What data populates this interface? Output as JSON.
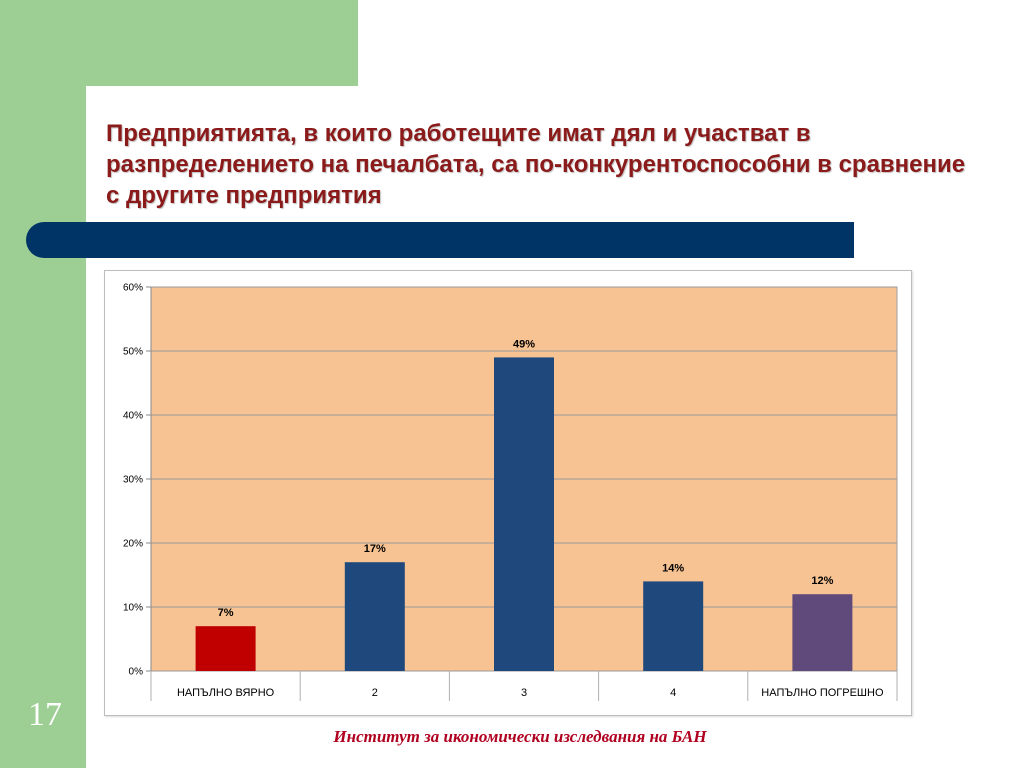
{
  "slide": {
    "number": "17",
    "title": "Предприятията, в които работещите имат дял и участват в разпределението на печалбата, са по-конкурентоспособни в сравнение с другите предприятия",
    "footer": "Институт за икономически изследвания на БАН"
  },
  "colors": {
    "green": "#9dcf94",
    "title_bar": "#003366",
    "title_text": "#8b1a1a",
    "plot_background": "#f7c393",
    "footer_text": "#b00020"
  },
  "chart_data": {
    "type": "bar",
    "categories": [
      "НАПЪЛНО ВЯРНО",
      "2",
      "3",
      "4",
      "НАПЪЛНО ПОГРЕШНО"
    ],
    "values": [
      7,
      17,
      49,
      14,
      12
    ],
    "data_labels": [
      "7%",
      "17%",
      "49%",
      "14%",
      "12%"
    ],
    "bar_colors": [
      "#c00000",
      "#1f497d",
      "#1f497d",
      "#1f497d",
      "#604a7b"
    ],
    "ylim": [
      0,
      60
    ],
    "yticks": [
      0,
      10,
      20,
      30,
      40,
      50,
      60
    ],
    "ytick_labels": [
      "0%",
      "10%",
      "20%",
      "30%",
      "40%",
      "50%",
      "60%"
    ],
    "grid": true,
    "legend": "none"
  }
}
